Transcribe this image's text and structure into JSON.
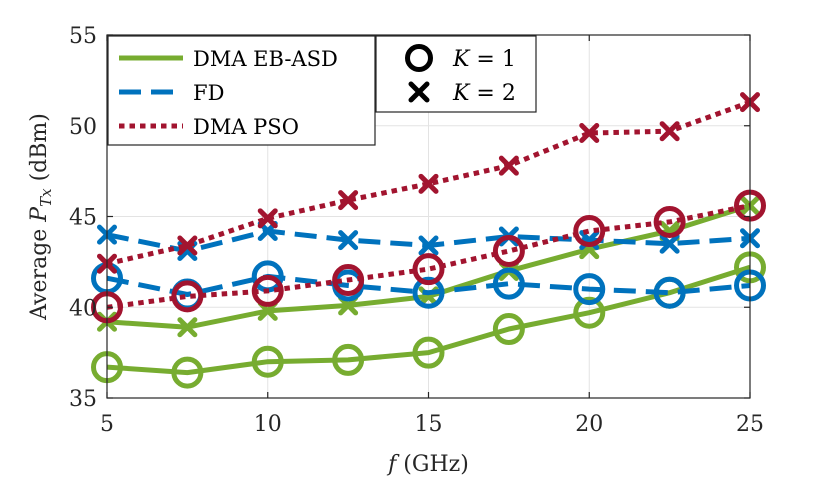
{
  "chart_data": {
    "type": "line",
    "title": "",
    "xlabel": "f (GHz)",
    "xlabel_var": "f",
    "xlabel_unit": " (GHz)",
    "ylabel": "Average P_Tx (dBm)",
    "ylabel_prefix": "Average ",
    "ylabel_var": "P",
    "ylabel_sub": "Tx",
    "ylabel_unit": "  (dBm)",
    "xlim": [
      5,
      25
    ],
    "ylim": [
      35,
      55
    ],
    "xticks": [
      5,
      10,
      15,
      20,
      25
    ],
    "yticks": [
      35,
      40,
      45,
      50,
      55
    ],
    "grid": true,
    "x": [
      5,
      7.5,
      10,
      12.5,
      15,
      17.5,
      20,
      22.5,
      25
    ],
    "series": [
      {
        "name": "DMA EB-ASD",
        "K": 1,
        "color": "#77AC30",
        "style": "solid",
        "marker": "circle",
        "values": [
          36.7,
          36.4,
          37.0,
          37.1,
          37.5,
          38.8,
          39.7,
          40.8,
          42.2
        ]
      },
      {
        "name": "DMA EB-ASD",
        "K": 2,
        "color": "#77AC30",
        "style": "solid",
        "marker": "cross",
        "values": [
          39.2,
          38.9,
          39.8,
          40.1,
          40.6,
          42.0,
          43.2,
          44.2,
          45.6
        ]
      },
      {
        "name": "FD",
        "K": 1,
        "color": "#0072BD",
        "style": "dashed",
        "marker": "circle",
        "values": [
          41.6,
          40.7,
          41.7,
          41.2,
          40.8,
          41.3,
          41.0,
          40.8,
          41.2
        ]
      },
      {
        "name": "FD",
        "K": 2,
        "color": "#0072BD",
        "style": "dashed",
        "marker": "cross",
        "values": [
          44.0,
          43.1,
          44.2,
          43.7,
          43.4,
          43.9,
          43.7,
          43.5,
          43.8
        ]
      },
      {
        "name": "DMA PSO",
        "K": 1,
        "color": "#A2142F",
        "style": "dotted",
        "marker": "circle",
        "values": [
          40.0,
          40.6,
          40.9,
          41.5,
          42.1,
          43.1,
          44.2,
          44.7,
          45.6
        ]
      },
      {
        "name": "DMA PSO",
        "K": 2,
        "color": "#A2142F",
        "style": "dotted",
        "marker": "cross",
        "values": [
          42.4,
          43.4,
          44.9,
          45.9,
          46.8,
          47.8,
          49.6,
          49.7,
          51.3
        ]
      }
    ],
    "legend_lines": [
      {
        "label": "DMA EB-ASD",
        "color": "#77AC30",
        "style": "solid"
      },
      {
        "label": "FD",
        "color": "#0072BD",
        "style": "dashed"
      },
      {
        "label": "DMA PSO",
        "color": "#A2142F",
        "style": "dotted"
      }
    ],
    "legend_markers": [
      {
        "marker": "circle",
        "var": "K",
        "rest": " = 1"
      },
      {
        "marker": "cross",
        "var": "K",
        "rest": " = 2"
      }
    ],
    "legend_placement": "top-left and top-center"
  }
}
